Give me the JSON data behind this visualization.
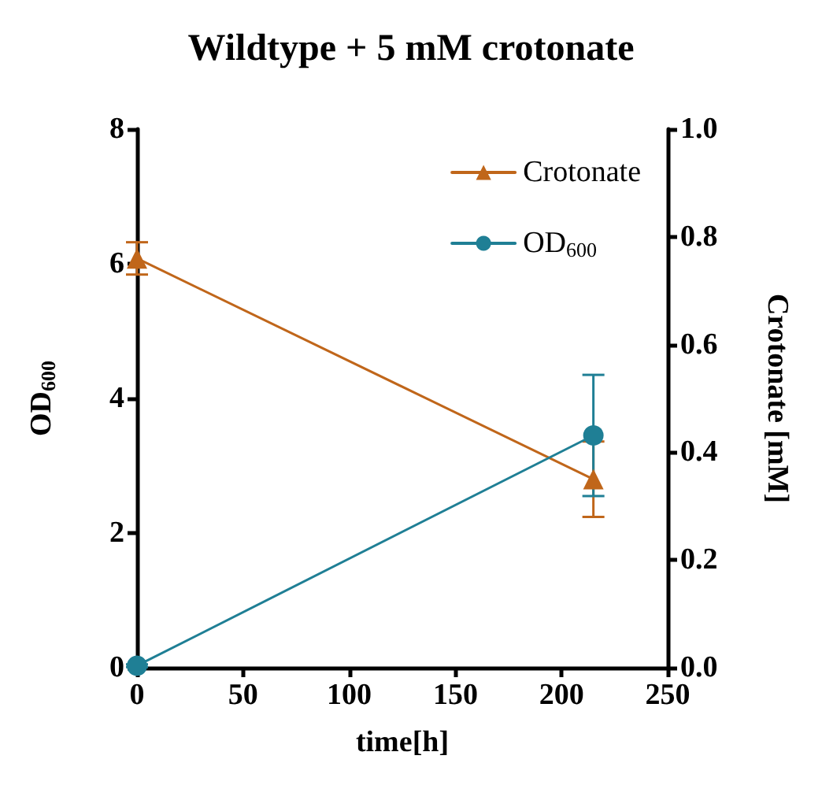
{
  "chart_data": {
    "type": "line",
    "title": "Wildtype + 5 mM crotonate",
    "xlabel": "time[h]",
    "ylabel": "OD$_{600}$",
    "y2label": "Crotonate [mM]",
    "x": [
      0,
      215
    ],
    "series": [
      {
        "name": "Crotonate",
        "color": "#c0661a",
        "axis": "y2",
        "marker": "triangle",
        "values": [
          0.76,
          0.35
        ],
        "errors": [
          0.03,
          0.07
        ]
      },
      {
        "name": "OD$_{600}$",
        "color": "#1f7f95",
        "marker": "circle",
        "values": [
          0.03,
          3.45
        ],
        "errors": [
          0.02,
          0.9
        ]
      }
    ],
    "xlim": [
      0,
      250
    ],
    "xticks": [
      0,
      50,
      100,
      150,
      200,
      250
    ],
    "ylim": [
      0,
      8
    ],
    "yticks": [
      0,
      2,
      4,
      6,
      8
    ],
    "y2lim": [
      0,
      1
    ],
    "y2ticks": [
      {
        "value": 0,
        "label": "0.0"
      },
      0.2,
      0.4,
      0.6,
      0.8,
      {
        "value": 1,
        "label": "1.0"
      }
    ],
    "grid": false,
    "legend": "top right",
    "line_style": "solid"
  }
}
